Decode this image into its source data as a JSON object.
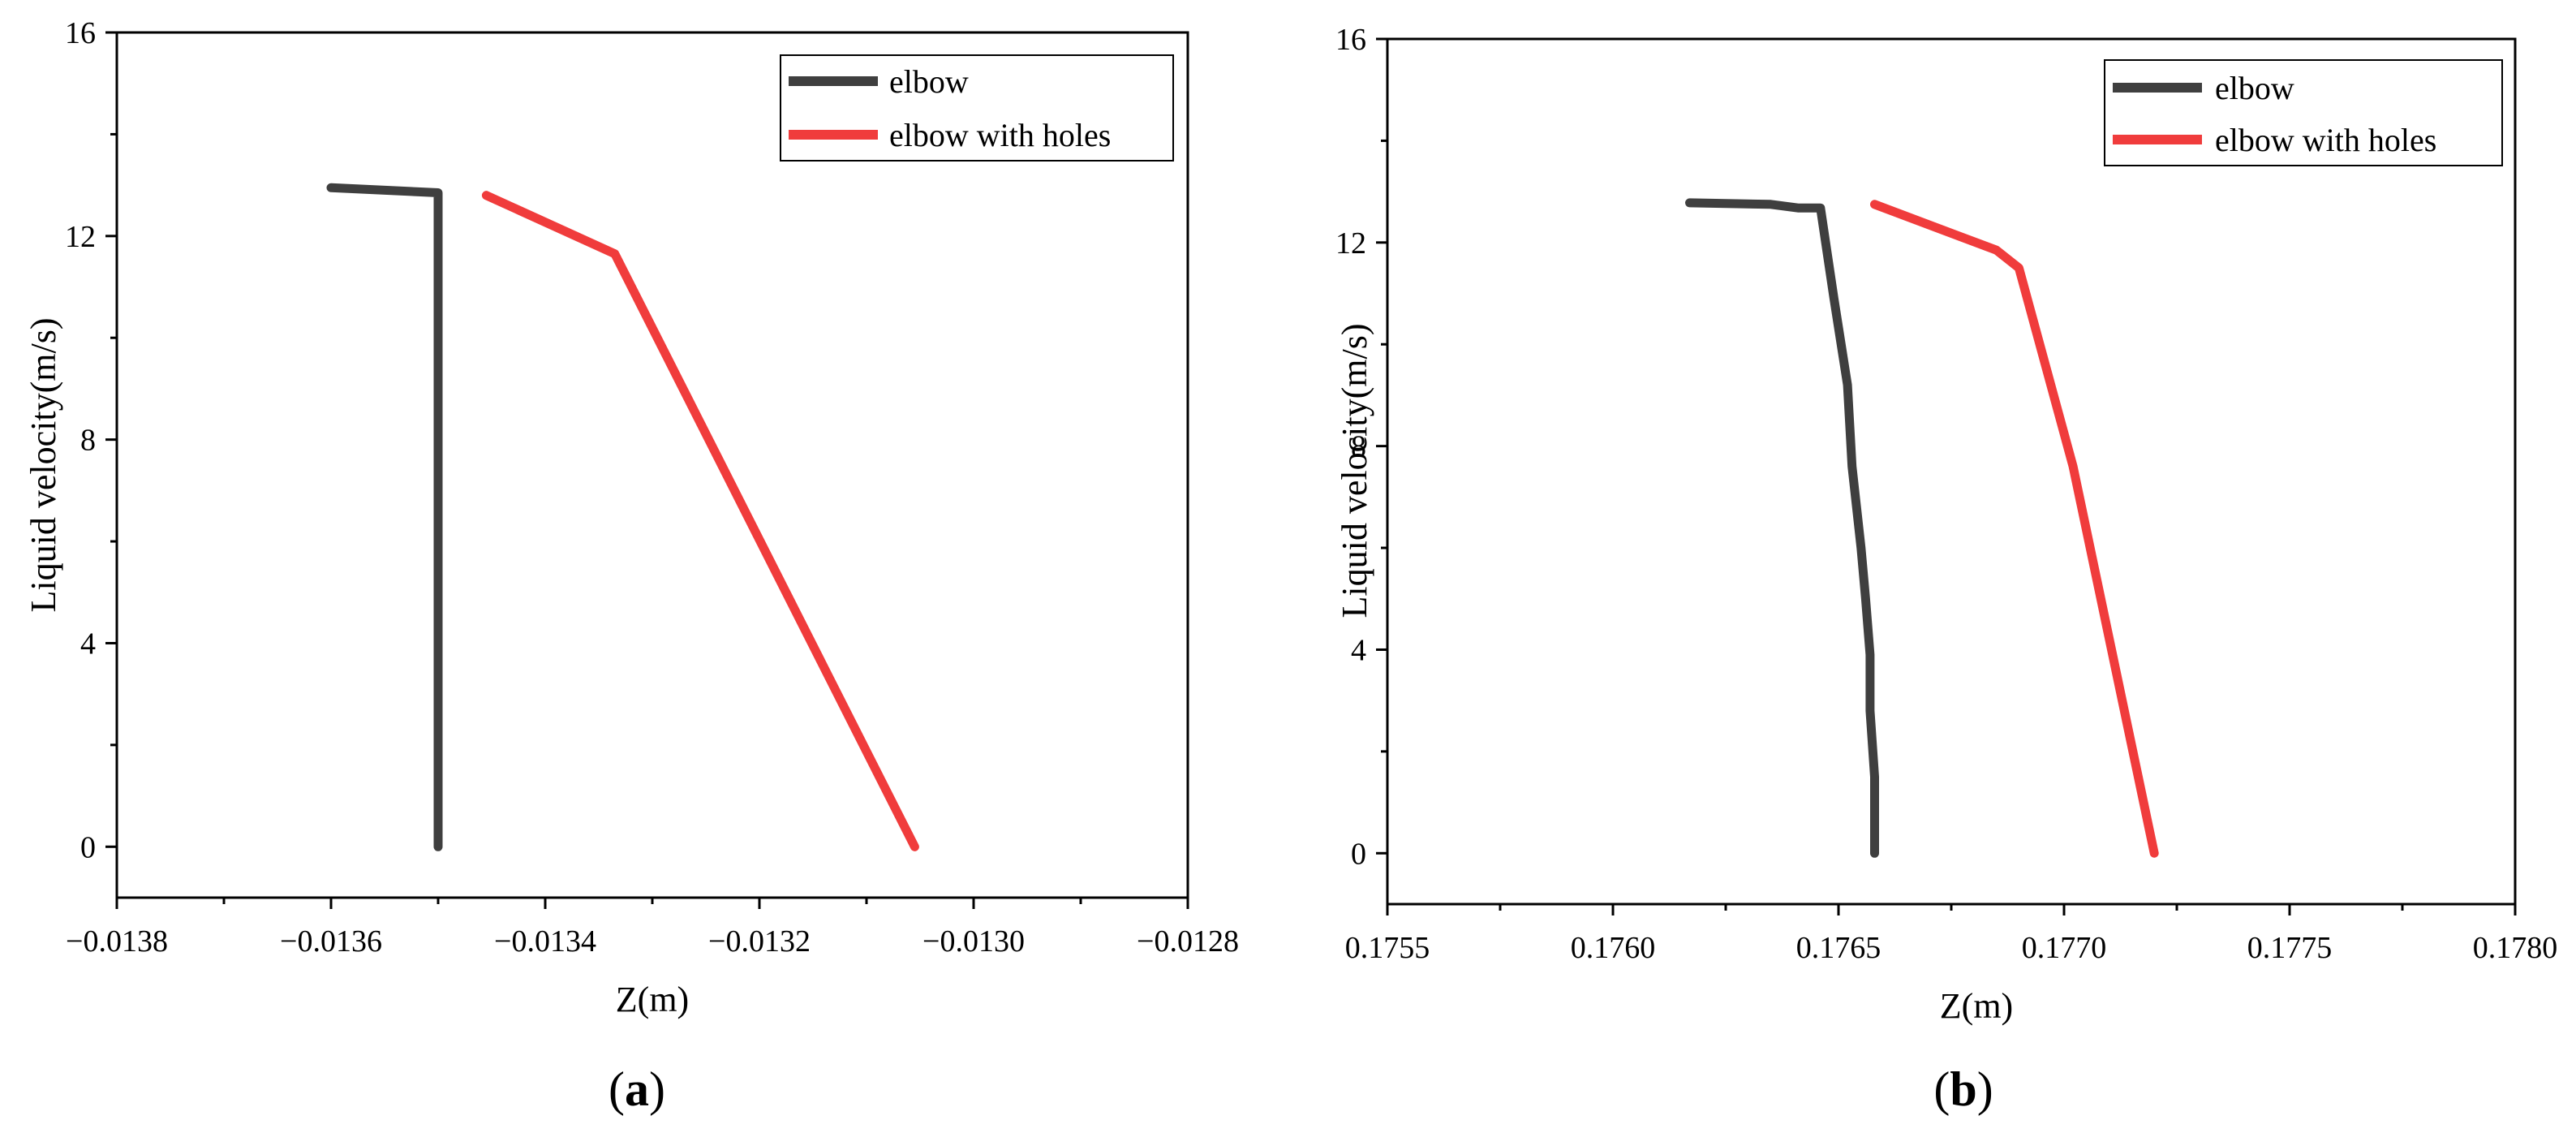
{
  "chart_data": [
    {
      "type": "line",
      "panel_label": [
        "(",
        "a",
        ")"
      ],
      "xlabel": "Z(m)",
      "ylabel": "Liquid velocity(m/s)",
      "xlim": [
        -0.0138,
        -0.0128
      ],
      "ylim": [
        -1,
        16
      ],
      "x_ticks": [
        -0.0138,
        -0.0136,
        -0.0134,
        -0.0132,
        -0.013,
        -0.0128
      ],
      "x_tick_labels": [
        "−0.0138",
        "−0.0136",
        "−0.0134",
        "−0.0132",
        "−0.0130",
        "−0.0128"
      ],
      "y_ticks": [
        0,
        4,
        8,
        12,
        16
      ],
      "y_tick_labels": [
        "0",
        "4",
        "8",
        "12",
        "16"
      ],
      "grid": false,
      "legend_position": "top-right",
      "series": [
        {
          "name": "elbow",
          "color": "#3f3f3f",
          "points": [
            [
              -0.0136,
              12.95
            ],
            [
              -0.0135,
              12.85
            ],
            [
              -0.0135,
              0
            ]
          ]
        },
        {
          "name": "elbow with holes",
          "color": "#f03c3c",
          "points": [
            [
              -0.013455,
              12.8
            ],
            [
              -0.013335,
              11.65
            ],
            [
              -0.013055,
              0
            ]
          ]
        }
      ]
    },
    {
      "type": "line",
      "panel_label": [
        "(",
        "b",
        ")"
      ],
      "xlabel": "Z(m)",
      "ylabel": "Liquid velocity(m/s)",
      "xlim": [
        0.1755,
        0.178
      ],
      "ylim": [
        -1,
        16
      ],
      "x_ticks": [
        0.1755,
        0.176,
        0.1765,
        0.177,
        0.1775,
        0.178
      ],
      "x_tick_labels": [
        "0.1755",
        "0.1760",
        "0.1765",
        "0.1770",
        "0.1775",
        "0.1780"
      ],
      "y_ticks": [
        0,
        4,
        8,
        12,
        16
      ],
      "y_tick_labels": [
        "0",
        "4",
        "8",
        "12",
        "16"
      ],
      "grid": false,
      "legend_position": "top-right",
      "series": [
        {
          "name": "elbow",
          "color": "#3f3f3f",
          "points": [
            [
              0.17617,
              12.78
            ],
            [
              0.17635,
              12.75
            ],
            [
              0.17641,
              12.68
            ],
            [
              0.17646,
              12.68
            ],
            [
              0.17649,
              10.9
            ],
            [
              0.17652,
              9.2
            ],
            [
              0.17653,
              7.6
            ],
            [
              0.17655,
              6.0
            ],
            [
              0.17656,
              5.0
            ],
            [
              0.17657,
              3.9
            ],
            [
              0.17657,
              2.8
            ],
            [
              0.17658,
              1.5
            ],
            [
              0.17658,
              0
            ]
          ]
        },
        {
          "name": "elbow with holes",
          "color": "#f03c3c",
          "points": [
            [
              0.17658,
              12.75
            ],
            [
              0.17685,
              11.85
            ],
            [
              0.1769,
              11.5
            ],
            [
              0.17702,
              7.6
            ],
            [
              0.1772,
              0
            ]
          ]
        }
      ]
    }
  ]
}
